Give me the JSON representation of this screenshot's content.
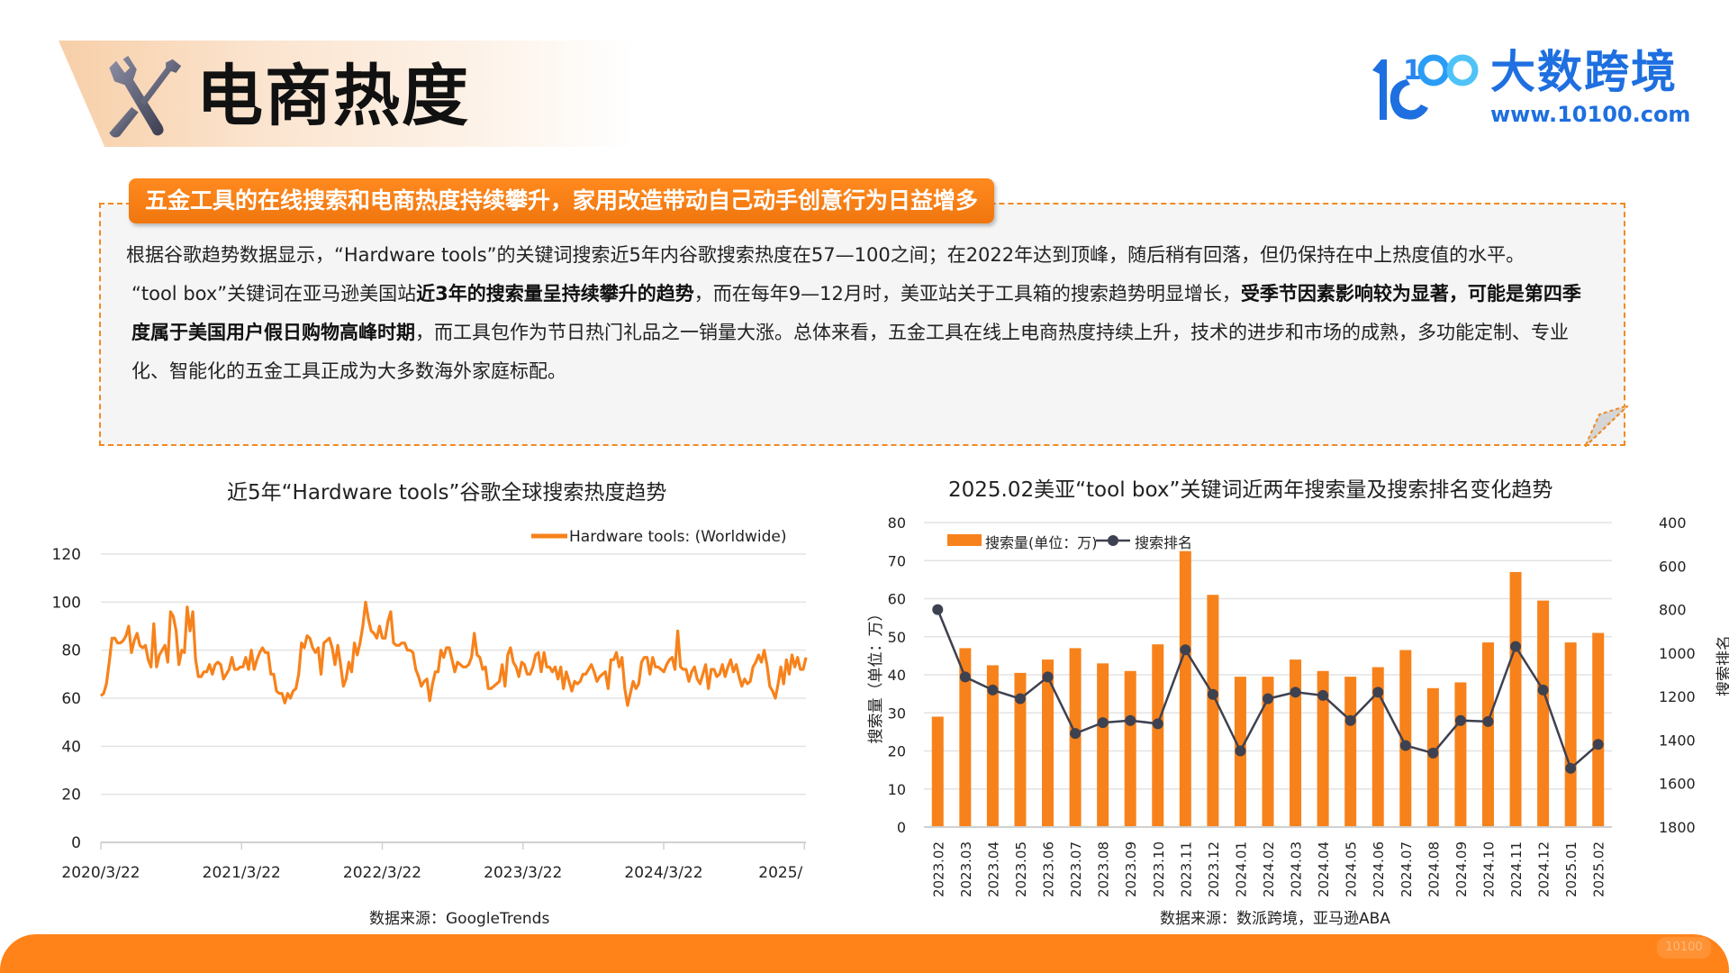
{
  "header": {
    "title": "电商热度",
    "icon": "tools-icon (wrench + screwdriver)"
  },
  "logo": {
    "mark": "10100",
    "name": "大数跨境",
    "url": "www.10100.com",
    "color": "#1e6fe0"
  },
  "summary": {
    "headline": "五金工具的在线搜索和电商热度持续攀升，家用改造带动自己动手创意行为日益增多",
    "p1": "根据谷歌趋势数据显示，“Hardware tools”的关键词搜索近5年内谷歌搜索热度在57—100之间；在2022年达到顶峰，随后稍有回落，但仍保持在中上热度值的水平。",
    "p2_a": "“tool box”关键词在亚马逊美国站",
    "p2_b": "近3年的搜索量呈持续攀升的趋势",
    "p2_c": "，而在每年9—12月时，美亚站关于工具箱的搜索趋势明显增长，",
    "p2_d": "受季节因素影响较为显著，可能是第四季度属于美国用户假日购物高峰时期",
    "p2_e": "，而工具包作为节日热门礼品之一销量大涨。总体来看，五金工具在线上电商热度持续上升，技术的进步和市场的成熟，多功能定制、专业化、智能化的五金工具正成为大多数海外家庭标配。"
  },
  "colors": {
    "accent": "#ff8319",
    "series_orange": "#f7821b",
    "rank_line": "#3e4150",
    "box_border": "#f08a24",
    "box_bg": "#f5f5f5"
  },
  "chart_data": [
    {
      "type": "line",
      "title": "近5年“Hardware tools”谷歌全球搜索热度趋势",
      "legend": [
        "Hardware tools: (Worldwide)"
      ],
      "legend_position": "top-right",
      "xlabel": "",
      "ylabel": "",
      "x_tick_labels": [
        "2020/3/22",
        "2021/3/22",
        "2022/3/22",
        "2023/3/22",
        "2024/3/22",
        "2025/"
      ],
      "y_ticks": [
        0,
        20,
        40,
        60,
        80,
        100,
        120
      ],
      "ylim": [
        0,
        120
      ],
      "grid": true,
      "source": "数据来源：GoogleTrends",
      "series": [
        {
          "name": "Hardware tools: (Worldwide)",
          "note": "weekly values, approx. read from plot (2020/3/22 → 2025/3)",
          "values": [
            61,
            62,
            66,
            75,
            85,
            85,
            83,
            83,
            84,
            86,
            90,
            79,
            84,
            87,
            82,
            81,
            82,
            76,
            73,
            91,
            73,
            78,
            80,
            82,
            75,
            96,
            94,
            88,
            74,
            80,
            79,
            98,
            88,
            96,
            76,
            69,
            69,
            71,
            71,
            74,
            70,
            74,
            75,
            74,
            68,
            70,
            72,
            77,
            72,
            72,
            73,
            73,
            77,
            72,
            80,
            72,
            76,
            79,
            81,
            79,
            79,
            70,
            70,
            63,
            62,
            62,
            58,
            62,
            60,
            63,
            64,
            70,
            83,
            81,
            86,
            85,
            81,
            79,
            81,
            70,
            83,
            84,
            85,
            81,
            74,
            82,
            74,
            65,
            68,
            75,
            71,
            83,
            78,
            83,
            90,
            100,
            93,
            88,
            87,
            85,
            90,
            85,
            85,
            92,
            96,
            83,
            82,
            82,
            83,
            83,
            80,
            80,
            79,
            72,
            69,
            65,
            67,
            68,
            59,
            66,
            71,
            71,
            80,
            77,
            81,
            81,
            76,
            71,
            75,
            74,
            73,
            73,
            74,
            77,
            87,
            78,
            77,
            72,
            73,
            64,
            64,
            65,
            66,
            67,
            74,
            65,
            78,
            81,
            75,
            73,
            69,
            75,
            74,
            70,
            70,
            73,
            78,
            79,
            71,
            79,
            73,
            73,
            71,
            73,
            68,
            73,
            64,
            71,
            67,
            63,
            67,
            66,
            67,
            70,
            70,
            72,
            74,
            71,
            67,
            69,
            70,
            71,
            64,
            76,
            76,
            79,
            73,
            77,
            64,
            57,
            62,
            67,
            64,
            66,
            75,
            77,
            77,
            70,
            77,
            73,
            73,
            72,
            71,
            74,
            76,
            77,
            72,
            88,
            73,
            72,
            72,
            67,
            71,
            73,
            68,
            66,
            70,
            74,
            64,
            72,
            72,
            69,
            70,
            74,
            69,
            73,
            76,
            71,
            74,
            69,
            65,
            68,
            66,
            67,
            73,
            75,
            78,
            75,
            80,
            74,
            65,
            63,
            60,
            66,
            73,
            66,
            76,
            70,
            78,
            73,
            77,
            72,
            72,
            77
          ]
        }
      ]
    },
    {
      "type": "bar+line",
      "title": "2025.02美亚“tool box”关键词近两年搜索量及搜索排名变化趋势",
      "legend": [
        "搜索量(单位：万)",
        "搜索排名"
      ],
      "legend_position": "top-left (inside plot)",
      "categories": [
        "2023.02",
        "2023.03",
        "2023.04",
        "2023.05",
        "2023.06",
        "2023.07",
        "2023.08",
        "2023.09",
        "2023.10",
        "2023.11",
        "2023.12",
        "2024.01",
        "2024.02",
        "2024.03",
        "2024.04",
        "2024.05",
        "2024.06",
        "2024.07",
        "2024.08",
        "2024.09",
        "2024.10",
        "2024.11",
        "2024.12",
        "2025.01",
        "2025.02"
      ],
      "ylabel": "搜索量（单位：万）",
      "y2label": "搜索排名",
      "y_ticks": [
        0,
        10,
        20,
        30,
        40,
        50,
        60,
        70,
        80
      ],
      "ylim": [
        0,
        80
      ],
      "y2_ticks": [
        400,
        600,
        800,
        1000,
        1200,
        1400,
        1600,
        1800
      ],
      "y2lim": [
        400,
        1800
      ],
      "y2_inverted": true,
      "grid": true,
      "source": "数据来源：数派跨境，亚马逊ABA",
      "series": [
        {
          "name": "搜索量(单位：万)",
          "type": "bar",
          "axis": "left",
          "values": [
            29,
            47,
            42.5,
            40.5,
            44,
            47,
            43,
            41,
            48,
            72.5,
            61,
            39.5,
            39.5,
            44,
            41,
            39.5,
            42,
            46.5,
            36.5,
            38,
            48.5,
            67,
            59.5,
            48.5,
            51
          ]
        },
        {
          "name": "搜索排名",
          "type": "line",
          "axis": "right",
          "values": [
            800,
            1110,
            1170,
            1210,
            1110,
            1370,
            1320,
            1310,
            1325,
            985,
            1190,
            1450,
            1210,
            1180,
            1195,
            1310,
            1180,
            1425,
            1460,
            1310,
            1315,
            970,
            1170,
            1530,
            1420
          ]
        }
      ]
    }
  ],
  "footer": {
    "watermark": "10100"
  }
}
